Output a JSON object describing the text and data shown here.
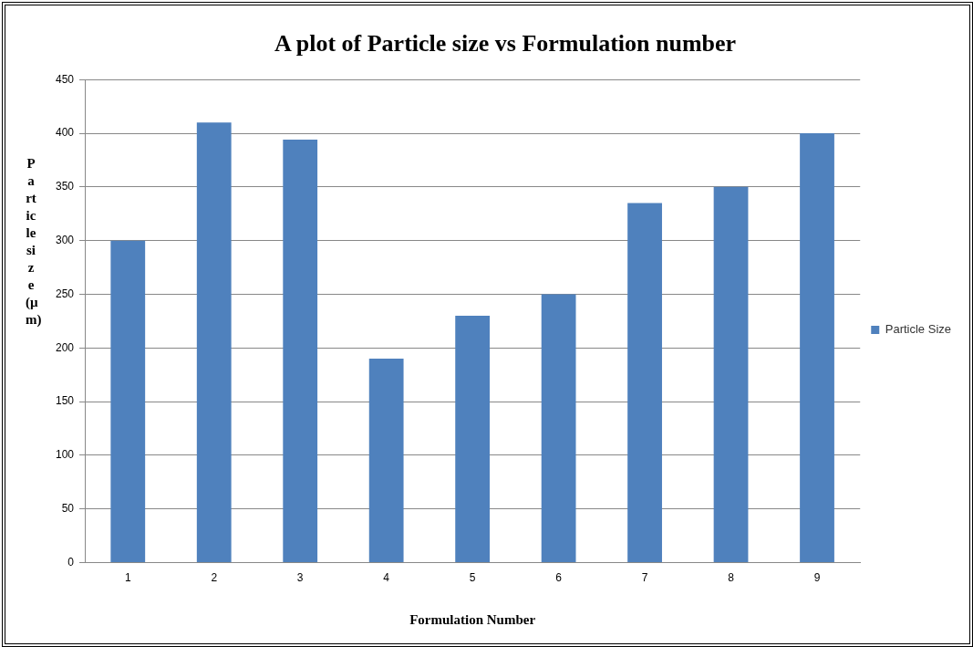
{
  "chart_data": {
    "type": "bar",
    "title": "A plot of Particle size vs Formulation number",
    "xlabel": "Formulation Number",
    "ylabel": "Particle size (µm)",
    "categories": [
      "1",
      "2",
      "3",
      "4",
      "5",
      "6",
      "7",
      "8",
      "9"
    ],
    "series": [
      {
        "name": "Particle Size",
        "color": "#4f81bd",
        "values": [
          300,
          410,
          394,
          190,
          230,
          250,
          335,
          350,
          400
        ]
      }
    ],
    "ylim": [
      0,
      450
    ],
    "yticks": [
      0,
      50,
      100,
      150,
      200,
      250,
      300,
      350,
      400,
      450
    ],
    "grid": "y",
    "legend": "right"
  }
}
